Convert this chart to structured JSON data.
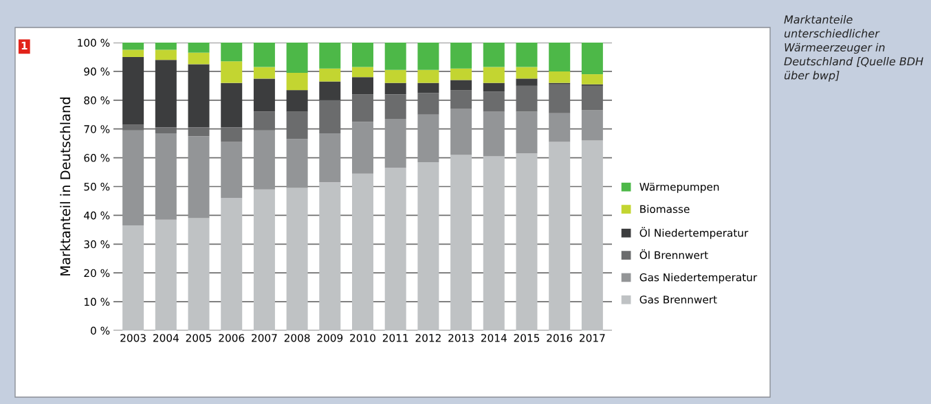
{
  "chart_data": {
    "type": "bar",
    "stacked": true,
    "ylabel": "Marktanteil in Deutschland",
    "categories": [
      "2003",
      "2004",
      "2005",
      "2006",
      "2007",
      "2008",
      "2009",
      "2010",
      "2011",
      "2012",
      "2013",
      "2014",
      "2015",
      "2016",
      "2017"
    ],
    "series": [
      {
        "name": "Gas Brennwert",
        "color": "#bfc2c4",
        "values": [
          36.5,
          38.5,
          39,
          46,
          49,
          49.5,
          51.5,
          54.5,
          56.5,
          58.5,
          61,
          60.5,
          61.5,
          65.5,
          66
        ]
      },
      {
        "name": "Gas Niedertemperatur",
        "color": "#939597",
        "values": [
          33,
          30,
          28.5,
          19.5,
          20.5,
          17,
          17,
          18,
          17,
          16.5,
          16,
          15.5,
          14.5,
          10,
          10.5
        ]
      },
      {
        "name": "Öl Brennwert",
        "color": "#6b6c6d",
        "values": [
          2,
          2,
          3,
          5,
          6.5,
          9.5,
          11.5,
          9.5,
          8.5,
          7.5,
          6.5,
          7,
          9,
          10,
          8.5
        ]
      },
      {
        "name": "Öl Niedertemperatur",
        "color": "#3c3d3e",
        "values": [
          23.5,
          23.5,
          22,
          15.5,
          11.5,
          7.5,
          6.5,
          6,
          4,
          3.5,
          3.5,
          3,
          2.5,
          0.5,
          0.5
        ]
      },
      {
        "name": "Biomasse",
        "color": "#c3d531",
        "values": [
          2.5,
          3.5,
          4,
          7.5,
          4,
          6,
          4.5,
          3.5,
          4.5,
          4.5,
          4,
          5.5,
          4,
          4,
          3.5
        ]
      },
      {
        "name": "Wärmepumpen",
        "color": "#4db848",
        "values": [
          2.5,
          2.5,
          3.5,
          6.5,
          8.5,
          10.5,
          9,
          8.5,
          9.5,
          9.5,
          9,
          8.5,
          8.5,
          10,
          11
        ]
      }
    ],
    "ylim": [
      0,
      100
    ],
    "yticks": [
      {
        "value": 0,
        "label": "0 %"
      },
      {
        "value": 10,
        "label": "10 %"
      },
      {
        "value": 20,
        "label": "20 %"
      },
      {
        "value": 30,
        "label": "30 %"
      },
      {
        "value": 40,
        "label": "40 %"
      },
      {
        "value": 50,
        "label": "50 %"
      },
      {
        "value": 60,
        "label": "60 %"
      },
      {
        "value": 70,
        "label": "70 %"
      },
      {
        "value": 80,
        "label": "80 %"
      },
      {
        "value": 90,
        "label": "90 %"
      },
      {
        "value": 100,
        "label": "100 %"
      }
    ],
    "grid": "y",
    "legend": "right",
    "annotations": [
      "1",
      "Marktanteile unterschiedlicher Wärmeerzeuger in Deutschland [Quelle BDH über bwp]"
    ]
  }
}
